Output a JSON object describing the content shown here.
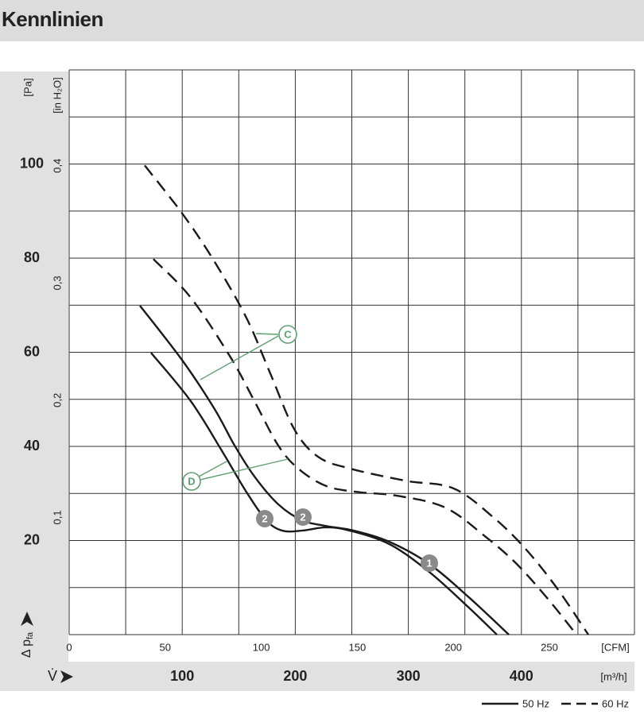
{
  "title": "Kennlinien",
  "chart_data": {
    "type": "line",
    "ylabel_unit": "[Pa]",
    "y2label_unit": "[in H₂O]",
    "ylabel": "Δ p",
    "ylabel_sub": "fa",
    "xlabel": "V̇",
    "xlabel_unit": "[m³/h]",
    "x2label_unit": "[CFM]",
    "xlim": [
      0,
      500
    ],
    "xticks": [
      100,
      200,
      300,
      400
    ],
    "xgrid": [
      50,
      100,
      150,
      200,
      250,
      300,
      350,
      400,
      450,
      500
    ],
    "x2lim": [
      0,
      294.3
    ],
    "x2ticks": [
      0,
      50,
      100,
      150,
      200,
      250
    ],
    "ylim": [
      0,
      120
    ],
    "yticks": [
      20,
      40,
      60,
      80,
      100
    ],
    "ygrid": [
      10,
      20,
      30,
      40,
      50,
      60,
      70,
      80,
      90,
      100,
      110,
      120
    ],
    "y2lim": [
      0,
      0.4818
    ],
    "y2ticks": [
      {
        "value": 0.1,
        "label": "0,1"
      },
      {
        "value": 0.2,
        "label": "0,2"
      },
      {
        "value": 0.3,
        "label": "0,3"
      },
      {
        "value": 0.4,
        "label": "0,4"
      }
    ],
    "grid": true,
    "series": [
      {
        "name": "50 Hz",
        "color": "#1a1a1a",
        "dashed": false,
        "x": [
          62.6,
          100.6,
          128.7,
          146.3,
          163.9,
          184.9,
          206.0,
          227.1,
          251.8,
          283.4,
          318.6,
          353.7,
          388.9
        ],
        "values": [
          69.9,
          58.1,
          47.9,
          40.2,
          33.6,
          27.7,
          24.3,
          23.1,
          22.1,
          19.7,
          15.0,
          7.9,
          0
        ]
      },
      {
        "name": "50 Hz",
        "color": "#1a1a1a",
        "dashed": false,
        "x": [
          72.4,
          107.6,
          135.7,
          156.8,
          174.4,
          188.5,
          206.0,
          227.1,
          248.2,
          283.4,
          318.6,
          353.7,
          378.3
        ],
        "values": [
          59.9,
          49.6,
          38.8,
          30.3,
          24.3,
          22.1,
          22.1,
          22.8,
          22.1,
          19.2,
          13.3,
          5.7,
          0
        ]
      },
      {
        "name": "60 Hz",
        "color": "#1a1a1a",
        "dashed": true,
        "x": [
          66.8,
          100.6,
          128.7,
          156.8,
          177.9,
          199.0,
          220.1,
          248.2,
          297.5,
          339.7,
          374.8,
          403.0,
          431.1,
          459.2
        ],
        "values": [
          99.7,
          89.3,
          79.2,
          67.3,
          55.5,
          43.7,
          37.8,
          35.3,
          32.7,
          31.1,
          25.0,
          18.4,
          10.0,
          0
        ]
      },
      {
        "name": "60 Hz",
        "color": "#1a1a1a",
        "dashed": true,
        "x": [
          74.5,
          107.6,
          142.8,
          163.9,
          184.9,
          202.5,
          227.1,
          255.3,
          290.4,
          332.6,
          367.8,
          395.9,
          424.1,
          448.7
        ],
        "values": [
          79.8,
          71.6,
          58.9,
          49.6,
          40.2,
          35.3,
          31.6,
          30.3,
          29.5,
          27.0,
          20.9,
          15.0,
          7.4,
          0
        ]
      }
    ],
    "annotations": [
      "C",
      "D",
      "1",
      "2",
      "2"
    ]
  }
}
